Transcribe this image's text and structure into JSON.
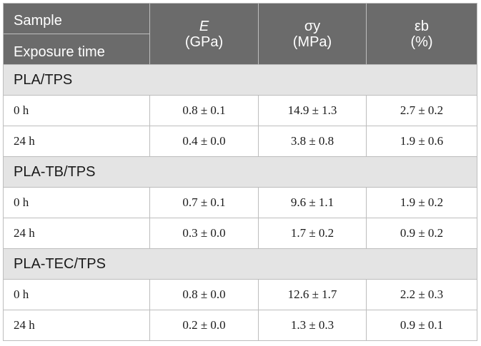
{
  "header": {
    "sample_label": "Sample",
    "exposure_label": "Exposure time",
    "col_e_symbol": "E",
    "col_e_unit": "(GPa)",
    "col_sy_symbol": "σy",
    "col_sy_unit": "(MPa)",
    "col_eb_symbol": "εb",
    "col_eb_unit": "(%)"
  },
  "groups": [
    {
      "name": "PLA/TPS",
      "rows": [
        {
          "time": "0 h",
          "e": "0.8 ± 0.1",
          "sy": "14.9 ± 1.3",
          "eb": "2.7 ± 0.2"
        },
        {
          "time": "24 h",
          "e": "0.4 ± 0.0",
          "sy": "3.8 ± 0.8",
          "eb": "1.9 ± 0.6"
        }
      ]
    },
    {
      "name": "PLA-TB/TPS",
      "rows": [
        {
          "time": "0 h",
          "e": "0.7 ± 0.1",
          "sy": "9.6 ± 1.1",
          "eb": "1.9 ± 0.2"
        },
        {
          "time": "24 h",
          "e": "0.3 ± 0.0",
          "sy": "1.7 ± 0.2",
          "eb": "0.9 ± 0.2"
        }
      ]
    },
    {
      "name": "PLA-TEC/TPS",
      "rows": [
        {
          "time": "0 h",
          "e": "0.8 ± 0.0",
          "sy": "12.6 ± 1.7",
          "eb": "2.2 ± 0.3"
        },
        {
          "time": "24 h",
          "e": "0.2 ± 0.0",
          "sy": "1.3 ± 0.3",
          "eb": "0.9 ± 0.1"
        }
      ]
    }
  ]
}
